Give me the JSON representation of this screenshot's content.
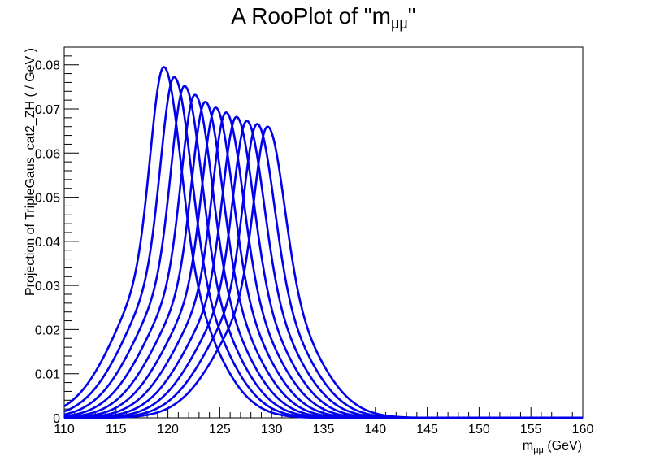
{
  "chart_data": {
    "type": "line",
    "title_main": "A RooPlot of \"m",
    "title_sub": "μμ",
    "title_end": "\"",
    "xlabel_main": "m",
    "xlabel_sub": "μμ",
    "xlabel_unit": " (GeV)",
    "ylabel": "Projection of TripleGaus_cat2_ZH ( / GeV )",
    "xlim": [
      110,
      160
    ],
    "ylim": [
      0,
      0.084
    ],
    "x_ticks": [
      "110",
      "115",
      "120",
      "125",
      "130",
      "135",
      "140",
      "145",
      "150",
      "155",
      "160"
    ],
    "y_ticks": [
      "0",
      "0.01",
      "0.02",
      "0.03",
      "0.04",
      "0.05",
      "0.06",
      "0.07",
      "0.08"
    ],
    "line_color": "#0000ee",
    "series": [
      {
        "mean": 119.6,
        "peak": 0.0795
      },
      {
        "mean": 120.6,
        "peak": 0.0772
      },
      {
        "mean": 121.6,
        "peak": 0.0752
      },
      {
        "mean": 122.6,
        "peak": 0.0732
      },
      {
        "mean": 123.6,
        "peak": 0.0716
      },
      {
        "mean": 124.6,
        "peak": 0.0703
      },
      {
        "mean": 125.6,
        "peak": 0.0692
      },
      {
        "mean": 126.6,
        "peak": 0.0682
      },
      {
        "mean": 127.6,
        "peak": 0.0673
      },
      {
        "mean": 128.6,
        "peak": 0.0666
      },
      {
        "mean": 129.6,
        "peak": 0.066
      }
    ]
  }
}
